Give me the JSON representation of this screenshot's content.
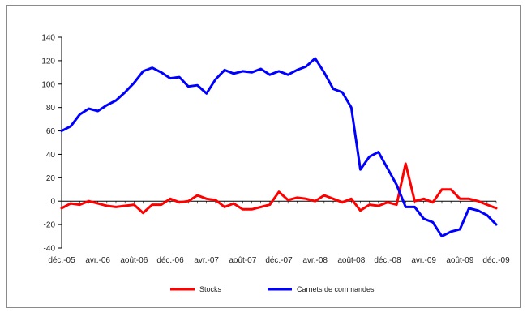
{
  "chart_data": {
    "type": "line",
    "title": "",
    "xlabel": "",
    "ylabel": "",
    "ylim": [
      -40,
      140
    ],
    "yticks": [
      -40,
      -20,
      0,
      20,
      40,
      60,
      80,
      100,
      120,
      140
    ],
    "grid": false,
    "legend_position": "bottom",
    "x": [
      "déc.-05",
      "janv.-06",
      "févr.-06",
      "mars-06",
      "avr.-06",
      "mai-06",
      "juin-06",
      "juil.-06",
      "août-06",
      "sept.-06",
      "oct.-06",
      "nov.-06",
      "déc.-06",
      "janv.-07",
      "févr.-07",
      "mars-07",
      "avr.-07",
      "mai-07",
      "juin-07",
      "juil.-07",
      "août-07",
      "sept.-07",
      "oct.-07",
      "nov.-07",
      "déc.-07",
      "janv.-08",
      "févr.-08",
      "mars-08",
      "avr.-08",
      "mai-08",
      "juin-08",
      "juil.-08",
      "août-08",
      "sept.-08",
      "oct.-08",
      "nov.-08",
      "déc.-08",
      "janv.-09",
      "févr.-09",
      "mars-09",
      "avr.-09",
      "mai-09",
      "juin-09",
      "juil.-09",
      "août-09",
      "sept.-09",
      "oct.-09",
      "nov.-09",
      "déc.-09"
    ],
    "xtick_labels": [
      "déc.-05",
      "avr.-06",
      "août-06",
      "déc.-06",
      "avr.-07",
      "août-07",
      "déc.-07",
      "avr.-08",
      "août-08",
      "déc.-08",
      "avr.-09",
      "août-09",
      "déc.-09"
    ],
    "series": [
      {
        "name": "Stocks",
        "color": "#ff0000",
        "values": [
          -6,
          -2,
          -3,
          0,
          -2,
          -4,
          -5,
          -4,
          -3,
          -10,
          -3,
          -3,
          2,
          -1,
          0,
          5,
          2,
          1,
          -5,
          -2,
          -7,
          -7,
          -5,
          -3,
          8,
          1,
          3,
          2,
          0,
          5,
          2,
          -1,
          2,
          -8,
          -3,
          -4,
          -1,
          -3,
          32,
          0,
          2,
          -1,
          10,
          10,
          2,
          2,
          0,
          -3,
          -6
        ]
      },
      {
        "name": "Carnets de commandes",
        "color": "#0000ff",
        "values": [
          60,
          64,
          74,
          79,
          77,
          82,
          86,
          93,
          101,
          111,
          114,
          110,
          105,
          106,
          98,
          99,
          92,
          104,
          112,
          109,
          111,
          110,
          113,
          108,
          111,
          108,
          112,
          115,
          122,
          110,
          96,
          93,
          80,
          27,
          38,
          42,
          28,
          14,
          -5,
          -5,
          -15,
          -18,
          -30,
          -26,
          -24,
          -6,
          -8,
          -12,
          -20
        ]
      }
    ]
  }
}
